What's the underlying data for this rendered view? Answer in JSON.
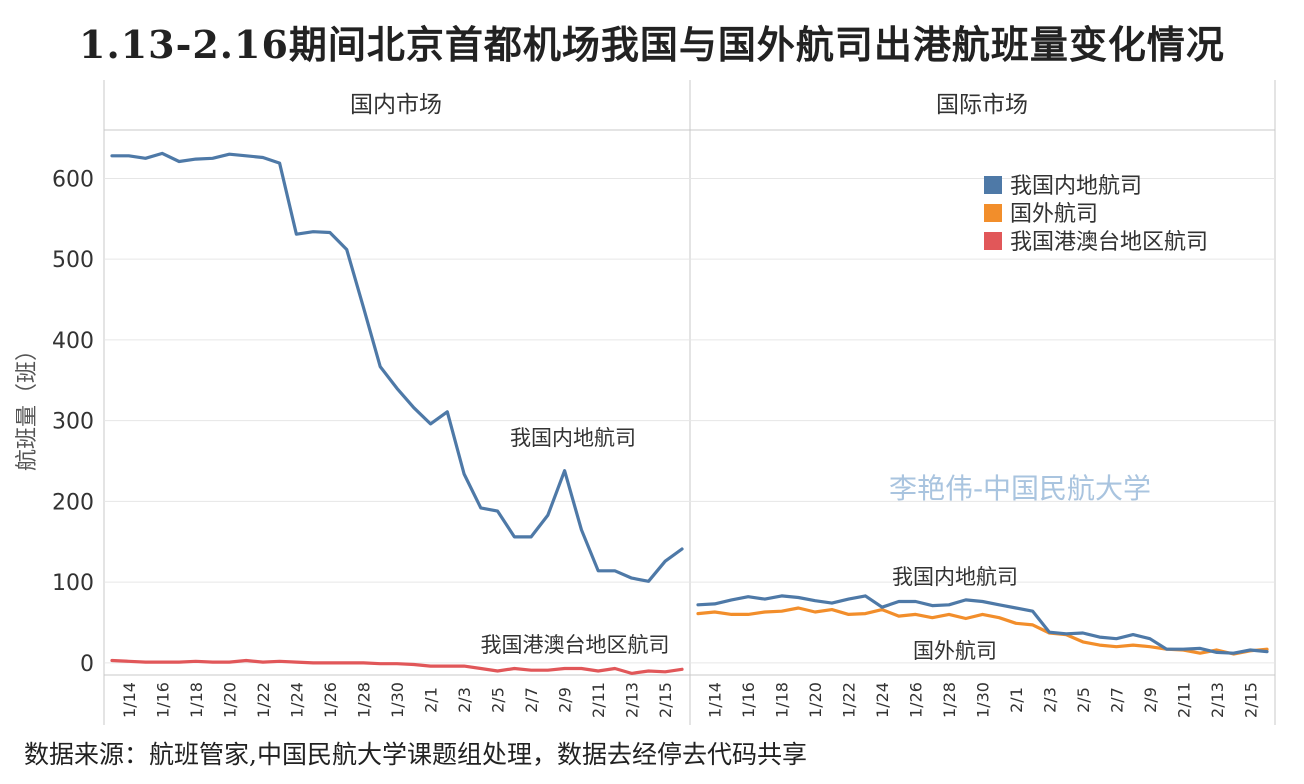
{
  "title": "1.13-2.16期间北京首都机场我国与国外航司出港航班量变化情况",
  "source": "数据来源：航班管家,中国民航大学课题组处理，数据去经停去代码共享",
  "watermark": "李艳伟-中国民航大学",
  "colors": {
    "domestic_airline": "#4e79a7",
    "foreign_airline": "#f28e2b",
    "hkmt_airline": "#e15759",
    "grid": "#e6e6e6",
    "frame": "#c8c8c8",
    "watermark": "#a9c4df"
  },
  "annotations": {
    "left_domestic": "我国内地航司",
    "left_hkmt": "我国港澳台地区航司",
    "right_domestic": "我国内地航司",
    "right_foreign": "国外航司"
  },
  "chart_data": {
    "type": "line",
    "ylabel": "航班量（班）",
    "ylim": [
      -15,
      660
    ],
    "yticks": [
      0,
      100,
      200,
      300,
      400,
      500,
      600
    ],
    "grid": true,
    "legend_position": "top-right of 国际市场 panel",
    "legend": [
      "我国内地航司",
      "国外航司",
      "我国港澳台地区航司"
    ],
    "x": [
      "1/13",
      "1/14",
      "1/15",
      "1/16",
      "1/17",
      "1/18",
      "1/19",
      "1/20",
      "1/21",
      "1/22",
      "1/23",
      "1/24",
      "1/25",
      "1/26",
      "1/27",
      "1/28",
      "1/29",
      "1/30",
      "1/31",
      "2/1",
      "2/2",
      "2/3",
      "2/4",
      "2/5",
      "2/6",
      "2/7",
      "2/8",
      "2/9",
      "2/10",
      "2/11",
      "2/12",
      "2/13",
      "2/14",
      "2/15",
      "2/16"
    ],
    "xtick_labels": [
      "1/14",
      "1/16",
      "1/18",
      "1/20",
      "1/22",
      "1/24",
      "1/26",
      "1/28",
      "1/30",
      "2/1",
      "2/3",
      "2/5",
      "2/7",
      "2/9",
      "2/11",
      "2/13",
      "2/15"
    ],
    "panels": [
      {
        "name": "国内市场",
        "series": [
          {
            "name": "我国内地航司",
            "values": [
              628,
              628,
              625,
              631,
              621,
              624,
              625,
              630,
              628,
              626,
              619,
              531,
              534,
              533,
              512,
              440,
              367,
              340,
              316,
              296,
              311,
              234,
              192,
              188,
              156,
              156,
              183,
              238,
              165,
              114,
              114,
              105,
              101,
              126,
              141
            ]
          },
          {
            "name": "我国港澳台地区航司",
            "values": [
              3,
              2,
              1,
              1,
              1,
              2,
              1,
              1,
              3,
              1,
              2,
              1,
              0,
              0,
              0,
              0,
              -1,
              -1,
              -2,
              -4,
              -4,
              -4,
              -7,
              -10,
              -7,
              -9,
              -9,
              -7,
              -7,
              -10,
              -7,
              -13,
              -10,
              -11,
              -8
            ]
          }
        ]
      },
      {
        "name": "国际市场",
        "series": [
          {
            "name": "我国内地航司",
            "values": [
              72,
              73,
              78,
              82,
              79,
              83,
              81,
              77,
              74,
              79,
              83,
              69,
              76,
              76,
              71,
              72,
              78,
              76,
              72,
              68,
              64,
              38,
              36,
              37,
              32,
              30,
              35,
              30,
              17,
              17,
              18,
              13,
              12,
              16,
              14
            ]
          },
          {
            "name": "国外航司",
            "values": [
              61,
              63,
              60,
              60,
              63,
              64,
              68,
              63,
              66,
              60,
              61,
              66,
              58,
              60,
              56,
              60,
              55,
              60,
              56,
              49,
              47,
              37,
              35,
              26,
              22,
              20,
              22,
              20,
              17,
              16,
              12,
              16,
              11,
              15,
              17
            ]
          }
        ]
      }
    ]
  }
}
